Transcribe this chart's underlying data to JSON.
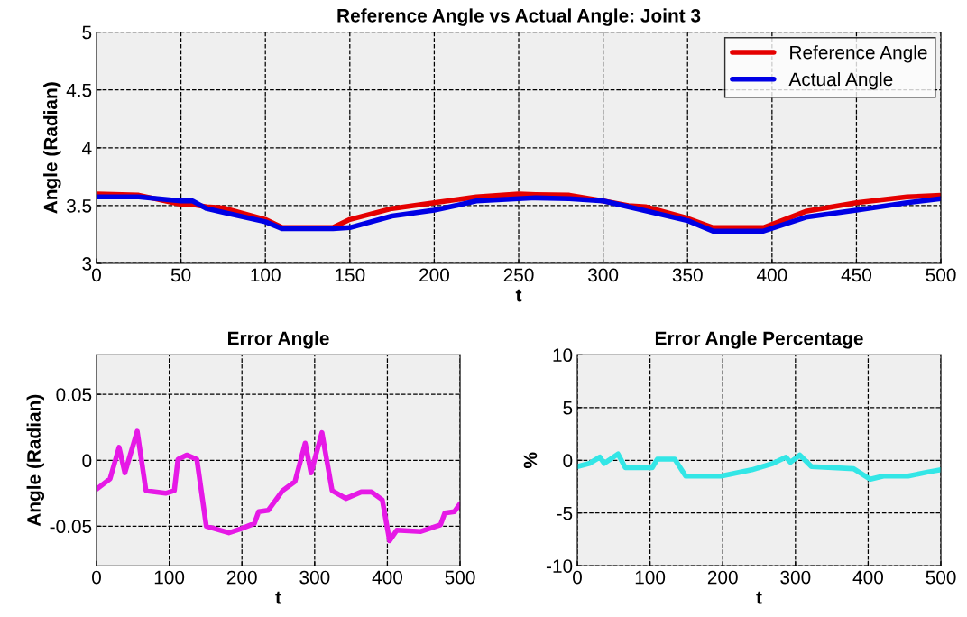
{
  "chart_data": [
    {
      "type": "line",
      "title": "Reference Angle vs Actual Angle: Joint 3",
      "xlabel": "t",
      "ylabel": "Angle (Radian)",
      "xlim": [
        0,
        500
      ],
      "ylim": [
        3,
        5
      ],
      "xticks": [
        0,
        50,
        100,
        150,
        200,
        250,
        300,
        350,
        400,
        450,
        500
      ],
      "yticks": [
        3,
        3.5,
        4,
        4.5,
        5
      ],
      "grid": true,
      "legend": "top right",
      "series": [
        {
          "name": "Reference Angle",
          "color": "#e50000",
          "x": [
            0,
            25,
            50,
            57,
            65,
            75,
            100,
            110,
            140,
            150,
            175,
            200,
            225,
            250,
            260,
            280,
            300,
            315,
            325,
            350,
            365,
            395,
            420,
            450,
            480,
            500
          ],
          "values": [
            3.6,
            3.59,
            3.51,
            3.51,
            3.49,
            3.48,
            3.38,
            3.31,
            3.31,
            3.38,
            3.475,
            3.525,
            3.575,
            3.6,
            3.595,
            3.59,
            3.54,
            3.5,
            3.49,
            3.39,
            3.31,
            3.31,
            3.45,
            3.525,
            3.575,
            3.59
          ]
        },
        {
          "name": "Actual Angle",
          "color": "#0000e5",
          "x": [
            0,
            25,
            50,
            57,
            65,
            100,
            110,
            140,
            150,
            175,
            200,
            225,
            250,
            260,
            280,
            300,
            315,
            350,
            365,
            395,
            420,
            450,
            480,
            500
          ],
          "values": [
            3.575,
            3.575,
            3.54,
            3.54,
            3.475,
            3.36,
            3.3,
            3.3,
            3.31,
            3.41,
            3.46,
            3.54,
            3.56,
            3.567,
            3.56,
            3.54,
            3.49,
            3.37,
            3.28,
            3.28,
            3.4,
            3.46,
            3.525,
            3.56
          ]
        }
      ]
    },
    {
      "type": "line",
      "title": "Error Angle",
      "xlabel": "t",
      "ylabel": "Angle (Radian)",
      "xlim": [
        0,
        500
      ],
      "ylim": [
        -0.08,
        0.08
      ],
      "xticks": [
        0,
        100,
        200,
        300,
        400,
        500
      ],
      "yticks": [
        -0.05,
        0,
        0.05
      ],
      "grid": true,
      "series": [
        {
          "color": "#e619e6",
          "x": [
            0,
            18.6,
            31,
            39,
            56,
            68,
            95,
            107,
            112,
            124,
            138,
            151,
            182,
            198,
            217,
            223,
            236,
            256,
            273,
            287,
            295,
            310,
            324,
            343,
            364,
            378,
            393,
            403,
            413,
            446,
            473,
            479,
            492,
            500
          ],
          "values": [
            -0.022,
            -0.014,
            0.0098,
            -0.0095,
            0.022,
            -0.023,
            -0.025,
            -0.023,
            0.0007,
            0.004,
            0.0007,
            -0.05,
            -0.055,
            -0.052,
            -0.048,
            -0.039,
            -0.038,
            -0.023,
            -0.016,
            0.013,
            -0.0095,
            0.021,
            -0.023,
            -0.029,
            -0.024,
            -0.024,
            -0.03,
            -0.061,
            -0.053,
            -0.054,
            -0.049,
            -0.04,
            -0.039,
            -0.033
          ]
        }
      ]
    },
    {
      "type": "line",
      "title": "Error Angle Percentage",
      "xlabel": "t",
      "ylabel": "%",
      "xlim": [
        0,
        500
      ],
      "ylim": [
        -10,
        10
      ],
      "xticks": [
        0,
        100,
        200,
        300,
        400,
        500
      ],
      "yticks": [
        -10,
        -5,
        0,
        5,
        10
      ],
      "grid": true,
      "series": [
        {
          "color": "#33e6e6",
          "x": [
            0,
            16.5,
            31,
            37,
            56,
            66,
            103,
            110,
            134,
            149,
            198,
            240,
            269,
            287,
            293,
            306,
            322,
            380,
            403,
            421,
            455,
            483,
            500
          ],
          "values": [
            -0.6,
            -0.3,
            0.3,
            -0.3,
            0.6,
            -0.7,
            -0.7,
            0.1,
            0.1,
            -1.5,
            -1.5,
            -0.9,
            -0.3,
            0.3,
            -0.2,
            0.5,
            -0.6,
            -0.8,
            -1.8,
            -1.5,
            -1.5,
            -1.1,
            -0.9
          ]
        }
      ]
    }
  ]
}
